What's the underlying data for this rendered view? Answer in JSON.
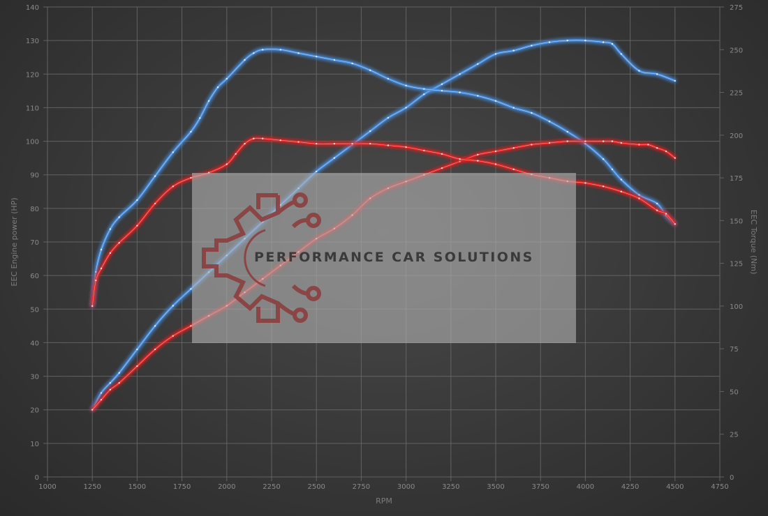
{
  "chart_data": {
    "type": "line",
    "xlabel": "RPM",
    "ylabel": "EEC Engine power (HP)",
    "y2label": "EEC Torque (Nm)",
    "xlim": [
      1000,
      4750
    ],
    "ylim": [
      0,
      140
    ],
    "y2lim": [
      0,
      275
    ],
    "xticks": [
      "1000",
      "1250",
      "1500",
      "1750",
      "2000",
      "2250",
      "2500",
      "2750",
      "3000",
      "3250",
      "3500",
      "3750",
      "4000",
      "4250",
      "4500",
      "4750"
    ],
    "yticks": [
      "0",
      "10",
      "20",
      "30",
      "40",
      "50",
      "60",
      "70",
      "80",
      "90",
      "100",
      "110",
      "120",
      "130",
      "140"
    ],
    "y2ticks": [
      "0",
      "25",
      "50",
      "75",
      "100",
      "125",
      "150",
      "175",
      "200",
      "225",
      "250",
      "275"
    ],
    "grid": true,
    "series": [
      {
        "axis": "left",
        "color": "#4a8fe0",
        "x": [
          1250,
          1300,
          1350,
          1400,
          1500,
          1600,
          1700,
          1800,
          1900,
          2000,
          2100,
          2200,
          2300,
          2400,
          2500,
          2600,
          2700,
          2800,
          2900,
          3000,
          3100,
          3200,
          3300,
          3400,
          3500,
          3600,
          3700,
          3800,
          3900,
          4000,
          4100,
          4150,
          4200,
          4300,
          4400,
          4500
        ],
        "values": [
          20,
          25,
          28,
          31,
          38,
          45,
          51,
          56,
          61,
          66,
          71,
          76,
          81,
          86,
          91,
          95,
          99,
          103,
          107,
          110,
          114,
          117,
          120,
          123,
          126,
          127,
          128.5,
          129.5,
          130,
          130,
          129.5,
          129,
          126,
          121,
          120,
          118
        ]
      },
      {
        "axis": "right",
        "color": "#4a8fe0",
        "x": [
          1250,
          1270,
          1300,
          1350,
          1400,
          1500,
          1600,
          1700,
          1800,
          1850,
          1900,
          1950,
          2000,
          2100,
          2150,
          2200,
          2300,
          2400,
          2500,
          2600,
          2700,
          2800,
          2900,
          3000,
          3100,
          3200,
          3300,
          3400,
          3500,
          3600,
          3700,
          3800,
          3900,
          4000,
          4100,
          4150,
          4200,
          4300,
          4400,
          4450,
          4500
        ],
        "values": [
          100,
          120,
          133,
          145,
          152,
          162,
          176,
          190,
          202,
          210,
          220,
          228,
          233,
          244,
          248,
          250,
          250,
          248,
          246,
          244,
          242,
          238,
          233,
          229,
          227,
          226,
          225,
          223,
          220,
          216,
          213,
          208,
          202,
          195,
          186,
          180,
          174,
          165,
          160,
          153,
          148
        ]
      },
      {
        "axis": "left",
        "color": "#e02525",
        "x": [
          1250,
          1300,
          1350,
          1400,
          1500,
          1600,
          1700,
          1800,
          1900,
          2000,
          2100,
          2200,
          2300,
          2400,
          2500,
          2600,
          2700,
          2800,
          2900,
          3000,
          3100,
          3200,
          3300,
          3400,
          3500,
          3600,
          3700,
          3800,
          3900,
          4000,
          4100,
          4150,
          4200,
          4300,
          4350,
          4400,
          4450,
          4500
        ],
        "values": [
          20,
          23,
          26,
          28,
          33,
          38,
          42,
          45,
          48,
          51,
          55,
          59,
          63,
          67,
          71,
          74,
          78,
          83,
          86,
          88,
          90,
          92,
          94,
          96,
          97,
          98,
          99,
          99.5,
          100,
          100,
          100,
          100,
          99.5,
          99,
          99,
          98,
          97,
          95
        ]
      },
      {
        "axis": "right",
        "color": "#e02525",
        "x": [
          1250,
          1270,
          1300,
          1350,
          1400,
          1500,
          1600,
          1700,
          1800,
          1900,
          2000,
          2050,
          2100,
          2150,
          2200,
          2300,
          2400,
          2500,
          2600,
          2700,
          2800,
          2900,
          3000,
          3100,
          3200,
          3300,
          3400,
          3500,
          3600,
          3700,
          3800,
          3900,
          4000,
          4100,
          4200,
          4300,
          4400,
          4450,
          4500
        ],
        "values": [
          100,
          115,
          122,
          131,
          137,
          147,
          160,
          170,
          175,
          178,
          183,
          189,
          195,
          198,
          198,
          197,
          196,
          195,
          195,
          195,
          195,
          194,
          193,
          191,
          189,
          186,
          185,
          183,
          180,
          177,
          175,
          173,
          172,
          170,
          167,
          163,
          156,
          154,
          148
        ]
      }
    ]
  },
  "watermark": {
    "text": "PERFORMANCE CAR SOLUTIONS",
    "logo": "gear-circuit-logo",
    "logo_color": "#8b3a3a"
  }
}
